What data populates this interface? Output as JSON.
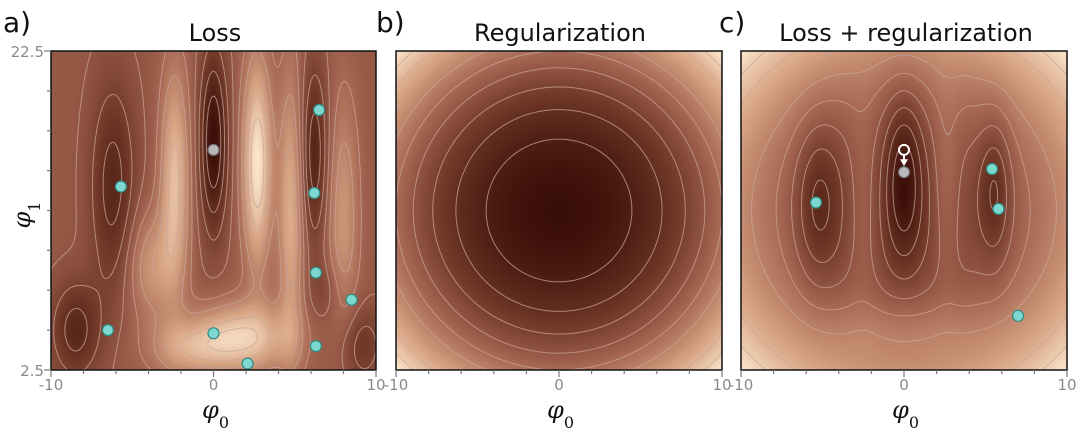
{
  "chart_data": [
    {
      "type": "heatmap",
      "letter": "a)",
      "title": "Loss",
      "xlabel": "φ0",
      "ylabel": "φ1",
      "xlim": [
        -10,
        10
      ],
      "ylim": [
        2.5,
        22.5
      ],
      "x_tick_labels": [
        "-10",
        "0",
        "10"
      ],
      "y_tick_labels": [
        "22.5",
        "2.5"
      ],
      "surface": "loss",
      "colormap": [
        "#3a0f08",
        "#6e3626",
        "#a86a55",
        "#d8a585",
        "#fbe6cb"
      ],
      "points": [
        {
          "x": 0.0,
          "y": 16.3,
          "kind": "global-min"
        },
        {
          "x": 6.5,
          "y": 18.8,
          "kind": "local-min"
        },
        {
          "x": -5.7,
          "y": 14.0,
          "kind": "local-min"
        },
        {
          "x": 6.2,
          "y": 13.6,
          "kind": "local-min"
        },
        {
          "x": 6.3,
          "y": 8.6,
          "kind": "local-min"
        },
        {
          "x": 8.5,
          "y": 6.9,
          "kind": "local-min"
        },
        {
          "x": -6.5,
          "y": 5.0,
          "kind": "local-min"
        },
        {
          "x": 0.0,
          "y": 4.8,
          "kind": "local-min"
        },
        {
          "x": 6.3,
          "y": 4.0,
          "kind": "local-min"
        },
        {
          "x": 2.1,
          "y": 2.9,
          "kind": "local-min"
        }
      ]
    },
    {
      "type": "heatmap",
      "letter": "b)",
      "title": "Regularization",
      "xlabel": "φ0",
      "xlim": [
        -10,
        10
      ],
      "ylim": [
        2.5,
        22.5
      ],
      "x_tick_labels": [
        "-10",
        "0",
        "10"
      ],
      "surface": "regularization",
      "colormap": [
        "#3a0f08",
        "#6e3626",
        "#a86a55",
        "#d8a585",
        "#fbe6cb"
      ],
      "points": []
    },
    {
      "type": "heatmap",
      "letter": "c)",
      "title": "Loss + regularization",
      "xlabel": "φ0",
      "xlim": [
        -10,
        10
      ],
      "ylim": [
        2.5,
        22.5
      ],
      "x_tick_labels": [
        "-10",
        "0",
        "10"
      ],
      "surface": "combined",
      "colormap": [
        "#3a0f08",
        "#6e3626",
        "#a86a55",
        "#d8a585",
        "#fbe6cb"
      ],
      "points": [
        {
          "x": 0.0,
          "y": 14.9,
          "kind": "global-min"
        },
        {
          "x": -5.4,
          "y": 13.0,
          "kind": "local-min"
        },
        {
          "x": 5.4,
          "y": 15.1,
          "kind": "local-min"
        },
        {
          "x": 5.8,
          "y": 12.6,
          "kind": "local-min"
        },
        {
          "x": 7.0,
          "y": 5.9,
          "kind": "local-min"
        }
      ],
      "arrow": {
        "from": {
          "x": 0.0,
          "y": 16.3
        },
        "to": {
          "x": 0.0,
          "y": 14.9
        }
      }
    }
  ],
  "colors": {
    "local_min": "#7ed8cf",
    "global_min": "#b9b9b9",
    "marker_edge": "#2d8b82",
    "contour": "#c8a49a",
    "arrow": "#ffffff"
  }
}
